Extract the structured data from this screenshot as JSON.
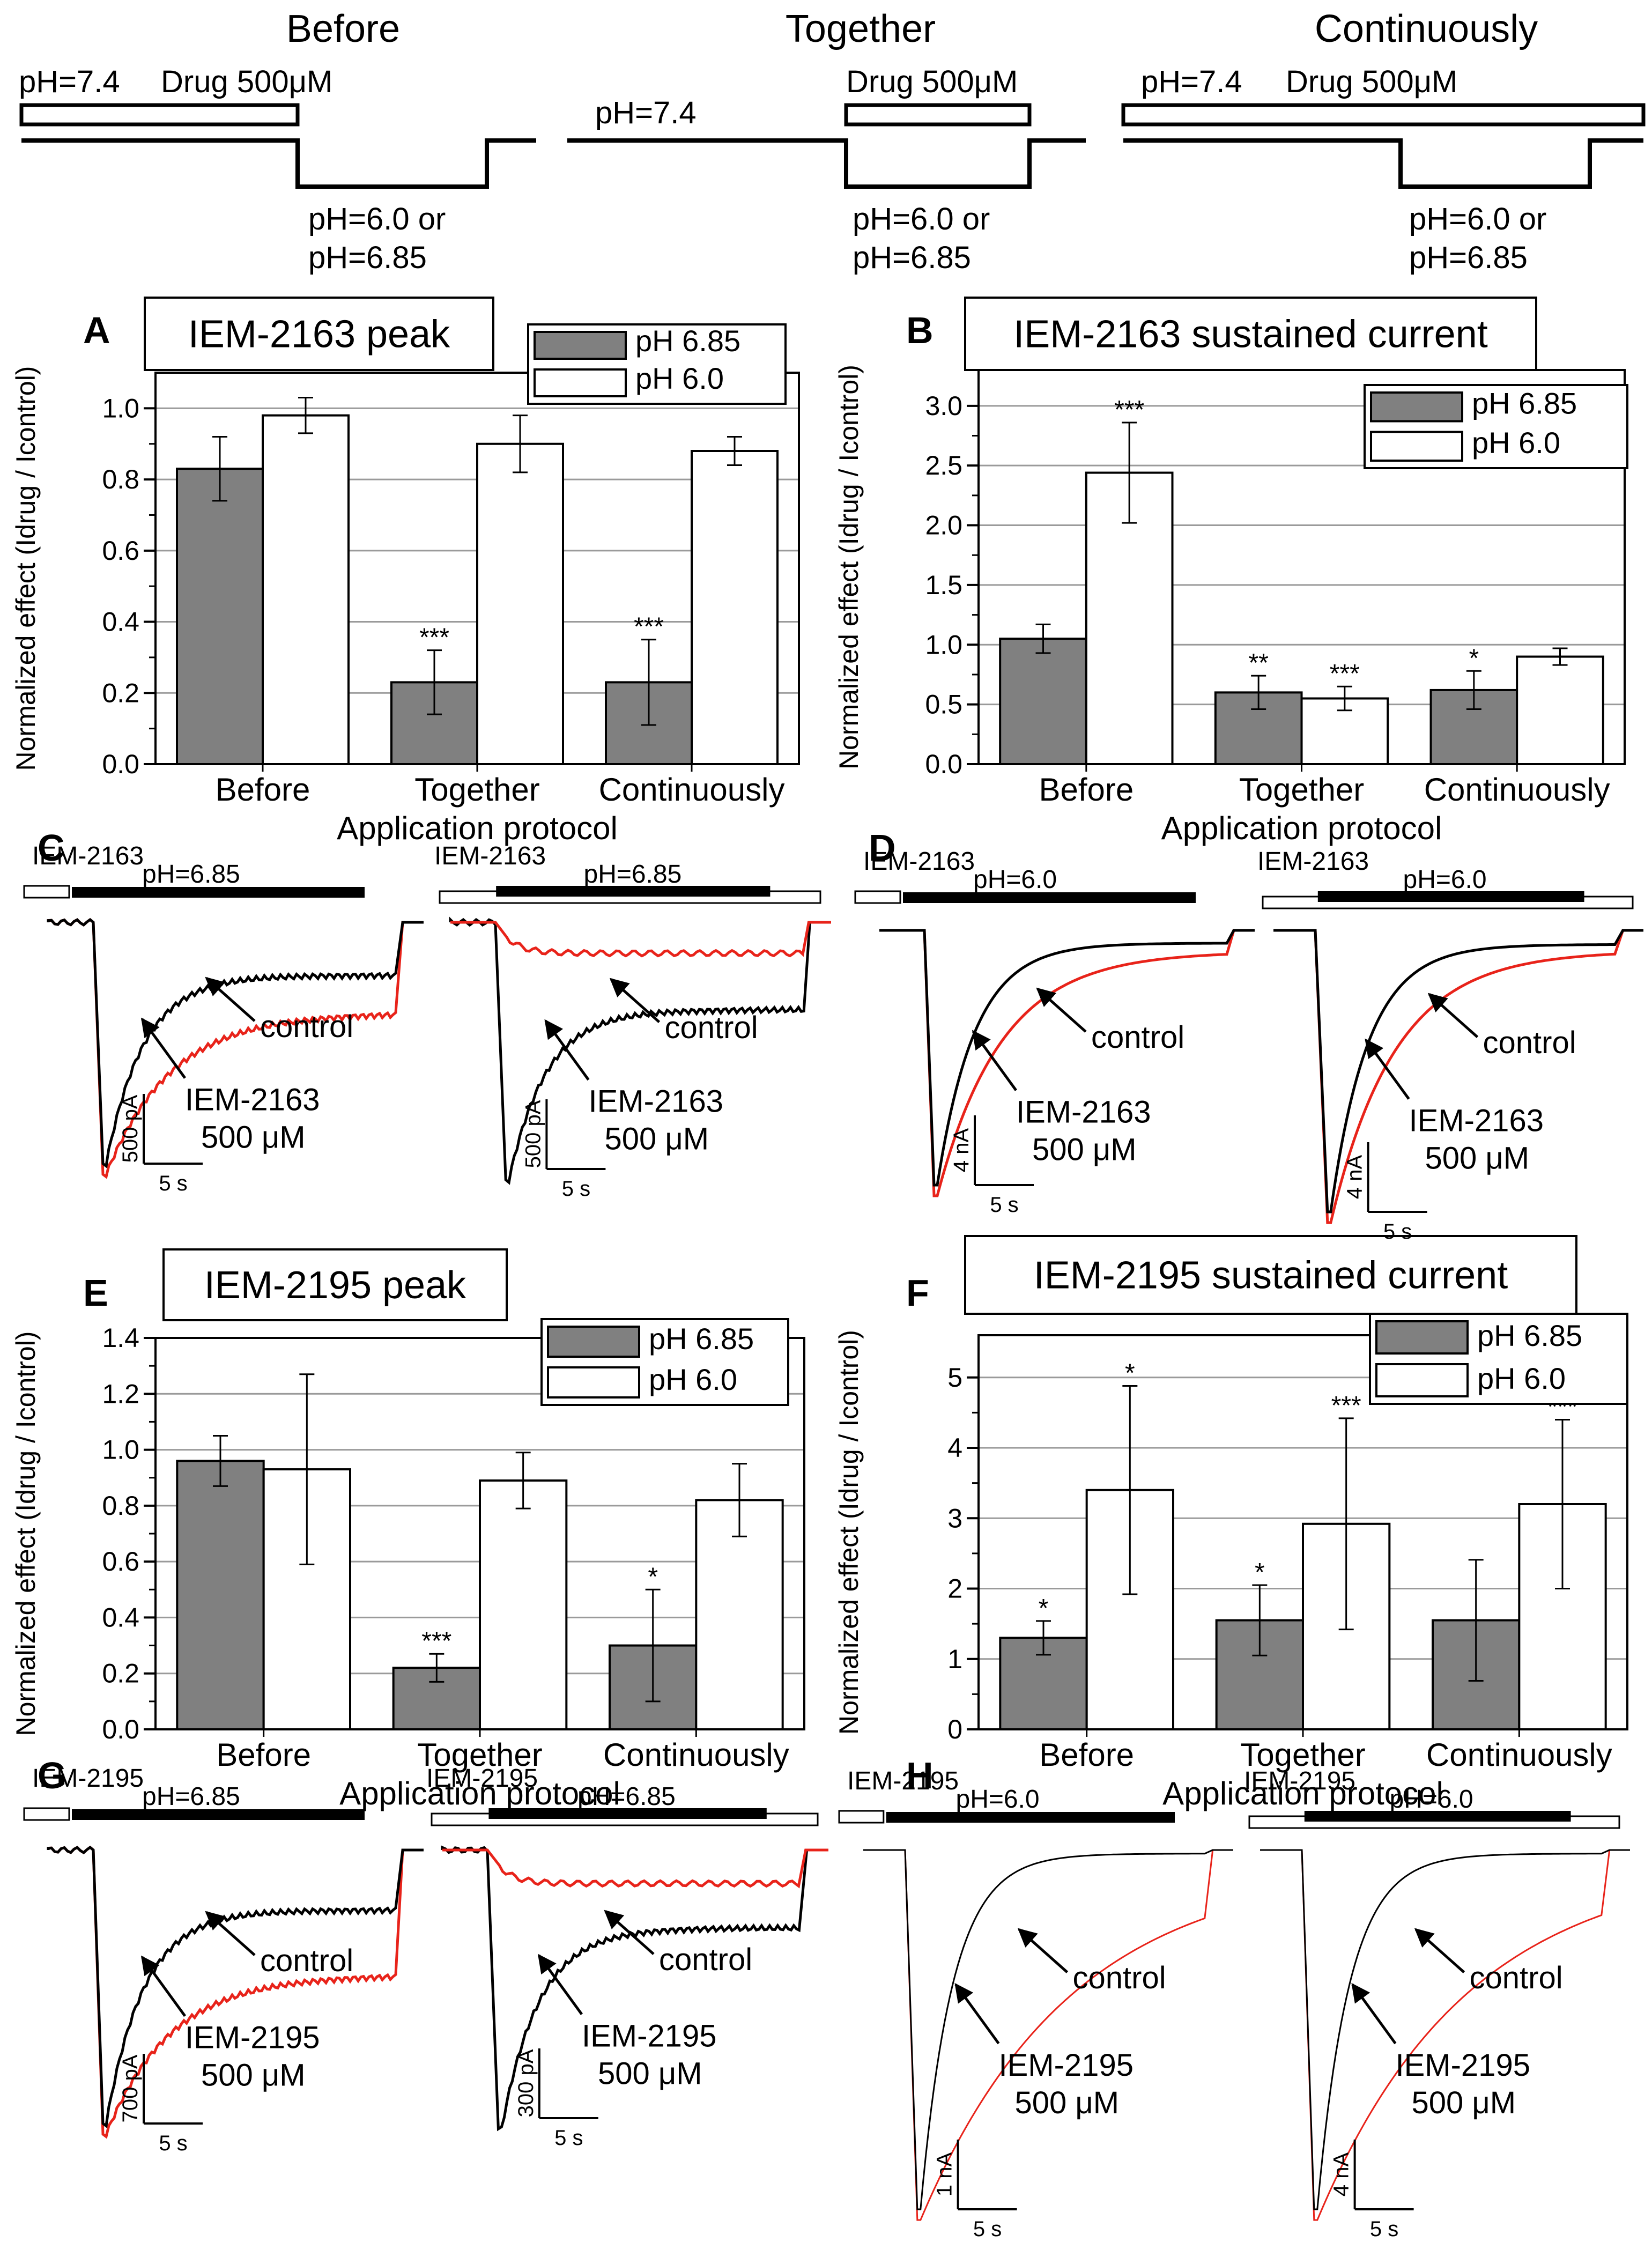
{
  "protocols": {
    "before": {
      "title": "Before",
      "ph_hold": "pH=7.4",
      "drug": "Drug 500μM",
      "test_line1": "pH=6.0 or",
      "test_line2": "pH=6.85"
    },
    "together": {
      "title": "Together",
      "ph_hold": "pH=7.4",
      "drug": "Drug 500μM",
      "test_line1": "pH=6.0 or",
      "test_line2": "pH=6.85"
    },
    "continuously": {
      "title": "Continuously",
      "ph_hold": "pH=7.4",
      "drug": "Drug 500μM",
      "test_line1": "pH=6.0 or",
      "test_line2": "pH=6.85"
    }
  },
  "colors": {
    "ph685": "#808080",
    "ph60": "#ffffff",
    "drug_trace": "#e8231a",
    "control_trace": "#000000"
  },
  "chart_data": [
    {
      "panel": "A",
      "type": "bar",
      "title": "IEM-2163 peak",
      "xlabel": "Application protocol",
      "ylabel": "Normalized effect (Idrug / Icontrol)",
      "categories": [
        "Before",
        "Together",
        "Continuously"
      ],
      "ylim": [
        0.0,
        1.1
      ],
      "yticks": [
        "0.0",
        "0.2",
        "0.4",
        "0.6",
        "0.8",
        "1.0"
      ],
      "legend_pos": "top-right",
      "series": [
        {
          "name": "pH 6.85",
          "values": [
            0.83,
            0.23,
            0.23
          ],
          "errors": [
            0.09,
            0.09,
            0.12
          ],
          "stars": [
            "",
            "***",
            "***"
          ]
        },
        {
          "name": "pH 6.0",
          "values": [
            0.98,
            0.9,
            0.88
          ],
          "errors": [
            0.05,
            0.08,
            0.04
          ],
          "stars": [
            "",
            "",
            ""
          ]
        }
      ]
    },
    {
      "panel": "B",
      "type": "bar",
      "title": "IEM-2163 sustained current",
      "xlabel": "Application protocol",
      "ylabel": "Normalized effect (Idrug / Icontrol)",
      "categories": [
        "Before",
        "Together",
        "Continuously"
      ],
      "ylim": [
        0.0,
        3.3
      ],
      "yticks": [
        "0.0",
        "0.5",
        "1.0",
        "1.5",
        "2.0",
        "2.5",
        "3.0"
      ],
      "legend_pos": "top-right",
      "series": [
        {
          "name": "pH 6.85",
          "values": [
            1.05,
            0.6,
            0.62
          ],
          "errors": [
            0.12,
            0.14,
            0.16
          ],
          "stars": [
            "",
            "**",
            "*"
          ]
        },
        {
          "name": "pH 6.0",
          "values": [
            2.44,
            0.55,
            0.9
          ],
          "errors": [
            0.42,
            0.1,
            0.07
          ],
          "stars": [
            "***",
            "***",
            ""
          ]
        }
      ]
    },
    {
      "panel": "E",
      "type": "bar",
      "title": "IEM-2195 peak",
      "xlabel": "Application protocol",
      "ylabel": "Normalized effect (Idrug / Icontrol)",
      "categories": [
        "Before",
        "Together",
        "Continuously"
      ],
      "ylim": [
        0.0,
        1.4
      ],
      "yticks": [
        "0.0",
        "0.2",
        "0.4",
        "0.6",
        "0.8",
        "1.0",
        "1.2",
        "1.4"
      ],
      "legend_pos": "top-right",
      "series": [
        {
          "name": "pH 6.85",
          "values": [
            0.96,
            0.22,
            0.3
          ],
          "errors": [
            0.09,
            0.05,
            0.2
          ],
          "stars": [
            "",
            "***",
            "*"
          ]
        },
        {
          "name": "pH 6.0",
          "values": [
            0.93,
            0.89,
            0.82
          ],
          "errors": [
            0.34,
            0.1,
            0.13
          ],
          "stars": [
            "",
            "",
            ""
          ]
        }
      ]
    },
    {
      "panel": "F",
      "type": "bar",
      "title": "IEM-2195 sustained current",
      "xlabel": "Application protocol",
      "ylabel": "Normalized effect (Idrug / Icontrol)",
      "categories": [
        "Before",
        "Together",
        "Continuously"
      ],
      "ylim": [
        0,
        5.6
      ],
      "yticks": [
        "0",
        "1",
        "2",
        "3",
        "4",
        "5"
      ],
      "legend_pos": "top-right",
      "series": [
        {
          "name": "pH 6.85",
          "values": [
            1.3,
            1.55,
            1.55
          ],
          "errors": [
            0.24,
            0.5,
            0.86
          ],
          "stars": [
            "*",
            "*",
            ""
          ]
        },
        {
          "name": "pH 6.0",
          "values": [
            3.4,
            2.92,
            3.2
          ],
          "errors": [
            1.48,
            1.5,
            1.2
          ],
          "stars": [
            "*",
            "***",
            "***"
          ]
        }
      ]
    }
  ],
  "traces": {
    "C": {
      "label": "C",
      "left": {
        "drug": "IEM-2163",
        "ph": "pH=6.85",
        "scale_y": "500 pA",
        "scale_x": "5 s"
      },
      "right": {
        "drug": "IEM-2163",
        "ph": "pH=6.85",
        "scale_y": "500 pA",
        "scale_x": "5 s"
      }
    },
    "D": {
      "label": "D",
      "left": {
        "drug": "IEM-2163",
        "ph": "pH=6.0",
        "scale_y": "4 nA",
        "scale_x": "5 s"
      },
      "right": {
        "drug": "IEM-2163",
        "ph": "pH=6.0",
        "scale_y": "4 nA",
        "scale_x": "5 s"
      }
    },
    "G": {
      "label": "G",
      "left": {
        "drug": "IEM-2195",
        "ph": "pH=6.85",
        "scale_y": "700 pA",
        "scale_x": "5 s"
      },
      "right": {
        "drug": "IEM-2195",
        "ph": "pH=6.85",
        "scale_y": "300 pA",
        "scale_x": "5 s"
      }
    },
    "H": {
      "label": "H",
      "left": {
        "drug": "IEM-2195",
        "ph": "pH=6.0",
        "scale_y": "1 nA",
        "scale_x": "5 s"
      },
      "right": {
        "drug": "IEM-2195",
        "ph": "pH=6.0",
        "scale_y": "4 nA",
        "scale_x": "5 s"
      }
    }
  },
  "annotations": {
    "control": "control",
    "drug_2163": "IEM-2163",
    "drug_2195": "IEM-2195",
    "conc": "500 μM"
  }
}
